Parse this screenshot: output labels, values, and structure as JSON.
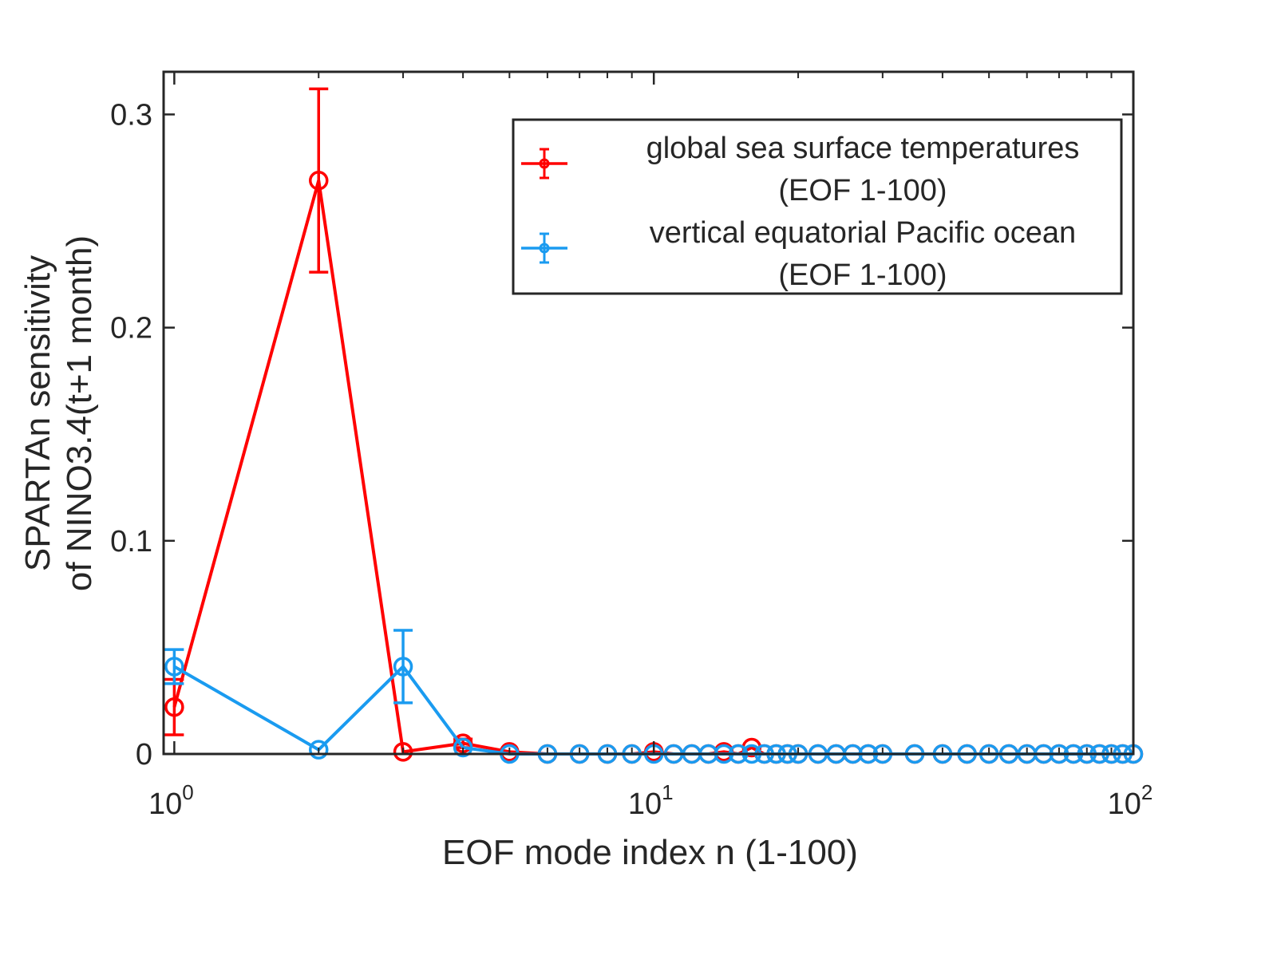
{
  "chart_data": {
    "type": "line",
    "xscale": "log",
    "xlim": [
      0.95,
      100
    ],
    "ylim": [
      0,
      0.32
    ],
    "xlabel": "EOF mode index n (1-100)",
    "ylabel": [
      "SPARTAn sensitivity",
      "of NINO3.4(t+1 month)"
    ],
    "yticks": [
      0,
      0.1,
      0.2,
      0.3
    ],
    "ytick_labels": [
      "0",
      "0.1",
      "0.2",
      "0.3"
    ],
    "xticks": [
      1,
      10,
      100
    ],
    "xtick_labels": [
      {
        "base": "10",
        "exp": "0"
      },
      {
        "base": "10",
        "exp": "1"
      },
      {
        "base": "10",
        "exp": "2"
      }
    ],
    "grid": false,
    "legend_position": "top-right",
    "series": [
      {
        "name": "global sea surface temperatures (EOF 1-100)",
        "legend_lines": [
          "global sea surface temperatures",
          "(EOF 1-100)"
        ],
        "color": "#ff0000",
        "x": [
          1,
          2,
          3,
          4,
          5,
          6,
          7,
          8,
          9,
          10,
          11,
          12,
          13,
          14,
          15,
          16,
          17,
          18,
          19,
          20,
          22,
          24,
          26,
          28,
          30,
          35,
          40,
          45,
          50,
          55,
          60,
          65,
          70,
          75,
          80,
          85,
          90,
          95,
          100
        ],
        "y": [
          0.022,
          0.269,
          0.001,
          0.005,
          0.001,
          0.0,
          0.0,
          0.0,
          0.0,
          0.001,
          0.0,
          0.0,
          0.0,
          0.001,
          0.0,
          0.003,
          0.0,
          0.0,
          0.0,
          0.0,
          0.0,
          0.0,
          0.0,
          0.0,
          0.0,
          0.0,
          0.0,
          0.0,
          0.0,
          0.0,
          0.0,
          0.0,
          0.0,
          0.0,
          0.0,
          0.0,
          0.0,
          0.0,
          0.0
        ],
        "err": [
          0.013,
          0.043,
          0,
          0.002,
          0,
          0,
          0,
          0,
          0,
          0,
          0,
          0,
          0,
          0,
          0,
          0,
          0,
          0,
          0,
          0,
          0,
          0,
          0,
          0,
          0,
          0,
          0,
          0,
          0,
          0,
          0,
          0,
          0,
          0,
          0,
          0,
          0,
          0,
          0
        ]
      },
      {
        "name": "vertical equatorial Pacific ocean (EOF 1-100)",
        "legend_lines": [
          "vertical equatorial Pacific ocean",
          "(EOF 1-100)"
        ],
        "color": "#1a9bf0",
        "x": [
          1,
          2,
          3,
          4,
          5,
          6,
          7,
          8,
          9,
          10,
          11,
          12,
          13,
          14,
          15,
          16,
          17,
          18,
          19,
          20,
          22,
          24,
          26,
          28,
          30,
          35,
          40,
          45,
          50,
          55,
          60,
          65,
          70,
          75,
          80,
          85,
          90,
          95,
          100
        ],
        "y": [
          0.041,
          0.002,
          0.041,
          0.003,
          0.0,
          0.0,
          0.0,
          0.0,
          0.0,
          0.0,
          0.0,
          0.0,
          0.0,
          0.0,
          0.0,
          0.0,
          0.0,
          0.0,
          0.0,
          0.0,
          0.0,
          0.0,
          0.0,
          0.0,
          0.0,
          0.0,
          0.0,
          0.0,
          0.0,
          0.0,
          0.0,
          0.0,
          0.0,
          0.0,
          0.0,
          0.0,
          0.0,
          0.0,
          0.0
        ],
        "err": [
          0.008,
          0,
          0.017,
          0,
          0,
          0,
          0,
          0,
          0,
          0,
          0,
          0,
          0,
          0,
          0,
          0,
          0,
          0,
          0,
          0,
          0,
          0,
          0,
          0,
          0,
          0,
          0,
          0,
          0,
          0,
          0,
          0,
          0,
          0,
          0,
          0,
          0,
          0,
          0
        ]
      }
    ]
  }
}
